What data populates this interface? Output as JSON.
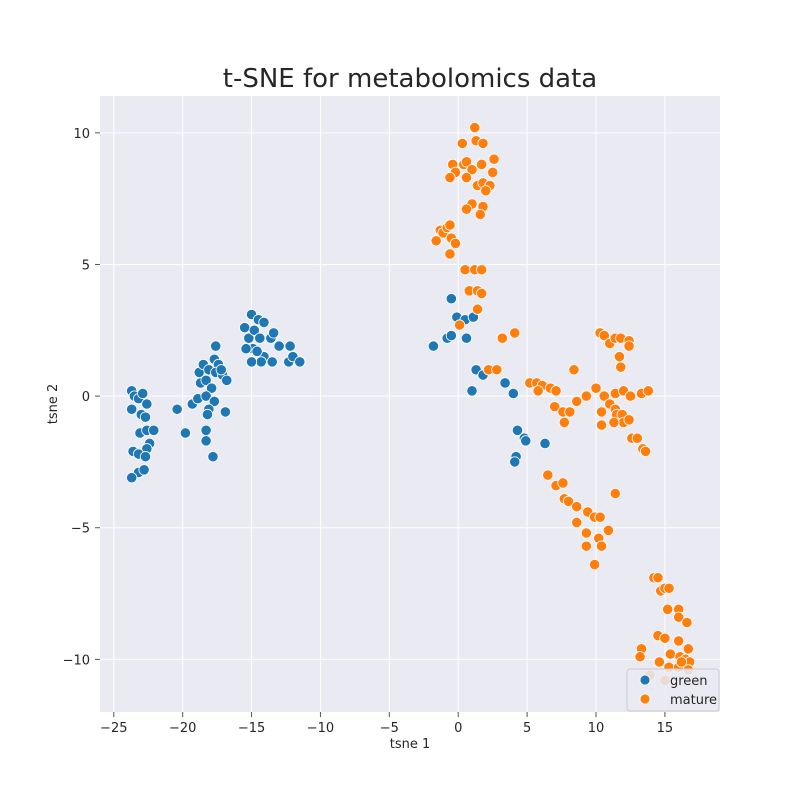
{
  "chart_data": {
    "type": "scatter",
    "title": "t-SNE for metabolomics data",
    "xlabel": "tsne 1",
    "ylabel": "tsne 2",
    "xlim": [
      -26,
      19
    ],
    "ylim": [
      -12,
      11.4
    ],
    "xticks": [
      -25,
      -20,
      -15,
      -10,
      -5,
      0,
      5,
      10,
      15
    ],
    "yticks": [
      -10,
      -5,
      0,
      5,
      10
    ],
    "grid": true,
    "legend_position": "bottom-right",
    "series": [
      {
        "name": "green",
        "color": "#1f77b4",
        "points": [
          [
            -23.7,
            0.2
          ],
          [
            -23.5,
            0.0
          ],
          [
            -23.2,
            -0.1
          ],
          [
            -22.9,
            0.1
          ],
          [
            -23.7,
            -0.5
          ],
          [
            -23.0,
            -0.7
          ],
          [
            -22.6,
            -0.3
          ],
          [
            -22.7,
            -0.8
          ],
          [
            -23.1,
            -1.4
          ],
          [
            -22.6,
            -1.3
          ],
          [
            -22.1,
            -1.3
          ],
          [
            -22.4,
            -1.8
          ],
          [
            -22.6,
            -2.0
          ],
          [
            -23.6,
            -2.1
          ],
          [
            -23.2,
            -2.2
          ],
          [
            -22.7,
            -2.3
          ],
          [
            -23.2,
            -2.9
          ],
          [
            -22.8,
            -2.8
          ],
          [
            -23.7,
            -3.1
          ],
          [
            -20.4,
            -0.5
          ],
          [
            -19.8,
            -1.4
          ],
          [
            -19.3,
            -0.3
          ],
          [
            -18.9,
            -0.1
          ],
          [
            -18.3,
            -1.3
          ],
          [
            -18.3,
            -1.7
          ],
          [
            -17.8,
            -2.3
          ],
          [
            -18.8,
            0.9
          ],
          [
            -18.5,
            1.2
          ],
          [
            -18.1,
            1.0
          ],
          [
            -17.7,
            1.4
          ],
          [
            -17.4,
            1.2
          ],
          [
            -17.6,
            1.9
          ],
          [
            -18.7,
            0.5
          ],
          [
            -18.3,
            0.6
          ],
          [
            -17.9,
            0.3
          ],
          [
            -17.6,
            0.9
          ],
          [
            -17.1,
            0.8
          ],
          [
            -16.8,
            0.6
          ],
          [
            -17.2,
            1.0
          ],
          [
            -18.3,
            0.0
          ],
          [
            -17.7,
            -0.2
          ],
          [
            -18.1,
            -0.5
          ],
          [
            -18.2,
            -0.7
          ],
          [
            -16.9,
            -0.6
          ],
          [
            -15.5,
            2.6
          ],
          [
            -15.0,
            3.1
          ],
          [
            -15.2,
            2.2
          ],
          [
            -14.8,
            2.5
          ],
          [
            -14.5,
            2.9
          ],
          [
            -14.1,
            2.8
          ],
          [
            -14.4,
            2.2
          ],
          [
            -14.1,
            1.5
          ],
          [
            -13.6,
            2.2
          ],
          [
            -13.4,
            2.4
          ],
          [
            -13.0,
            1.9
          ],
          [
            -13.5,
            1.3
          ],
          [
            -14.3,
            1.3
          ],
          [
            -14.9,
            1.8
          ],
          [
            -15.0,
            1.3
          ],
          [
            -15.4,
            1.8
          ],
          [
            -14.6,
            1.7
          ],
          [
            -12.2,
            1.9
          ],
          [
            -12.3,
            1.3
          ],
          [
            -12.0,
            1.5
          ],
          [
            -11.5,
            1.3
          ],
          [
            -0.5,
            3.7
          ],
          [
            -1.8,
            1.9
          ],
          [
            -0.8,
            2.2
          ],
          [
            -0.5,
            2.3
          ],
          [
            -0.1,
            3.0
          ],
          [
            0.5,
            2.9
          ],
          [
            1.1,
            3.0
          ],
          [
            0.6,
            2.2
          ],
          [
            1.3,
            1.0
          ],
          [
            1.8,
            0.8
          ],
          [
            1.0,
            0.2
          ],
          [
            3.4,
            0.5
          ],
          [
            4.0,
            0.1
          ],
          [
            4.3,
            -1.3
          ],
          [
            4.8,
            -1.6
          ],
          [
            4.9,
            -1.7
          ],
          [
            4.2,
            -2.3
          ],
          [
            4.1,
            -2.5
          ],
          [
            6.3,
            -1.8
          ]
        ]
      },
      {
        "name": "mature",
        "color": "#ff7f0e",
        "points": [
          [
            1.2,
            10.2
          ],
          [
            0.3,
            9.6
          ],
          [
            1.3,
            9.7
          ],
          [
            1.8,
            9.6
          ],
          [
            0.4,
            8.8
          ],
          [
            -0.4,
            8.8
          ],
          [
            0.6,
            8.9
          ],
          [
            1.0,
            8.6
          ],
          [
            1.7,
            8.8
          ],
          [
            2.6,
            9.0
          ],
          [
            -0.2,
            8.5
          ],
          [
            -0.6,
            8.3
          ],
          [
            0.6,
            8.3
          ],
          [
            2.5,
            8.5
          ],
          [
            1.4,
            8.0
          ],
          [
            1.8,
            8.1
          ],
          [
            2.3,
            8.0
          ],
          [
            2.0,
            7.8
          ],
          [
            1.0,
            7.3
          ],
          [
            0.6,
            7.1
          ],
          [
            1.8,
            7.2
          ],
          [
            1.6,
            6.9
          ],
          [
            -1.3,
            6.3
          ],
          [
            -1.1,
            6.2
          ],
          [
            -0.8,
            6.4
          ],
          [
            -0.6,
            6.5
          ],
          [
            -0.5,
            6.0
          ],
          [
            -0.2,
            5.8
          ],
          [
            -1.6,
            5.9
          ],
          [
            -0.6,
            5.4
          ],
          [
            0.5,
            4.8
          ],
          [
            1.2,
            4.8
          ],
          [
            1.7,
            4.8
          ],
          [
            0.8,
            4.0
          ],
          [
            1.4,
            4.0
          ],
          [
            1.7,
            3.9
          ],
          [
            1.4,
            3.3
          ],
          [
            0.1,
            2.7
          ],
          [
            3.2,
            2.2
          ],
          [
            4.1,
            2.4
          ],
          [
            2.2,
            1.0
          ],
          [
            2.8,
            1.0
          ],
          [
            5.2,
            0.5
          ],
          [
            5.7,
            0.5
          ],
          [
            6.1,
            0.4
          ],
          [
            6.7,
            0.3
          ],
          [
            7.1,
            0.2
          ],
          [
            5.8,
            0.2
          ],
          [
            7.0,
            -0.4
          ],
          [
            7.6,
            -0.6
          ],
          [
            7.7,
            -1.0
          ],
          [
            8.1,
            -0.6
          ],
          [
            8.4,
            1.0
          ],
          [
            8.6,
            -0.2
          ],
          [
            9.3,
            0.0
          ],
          [
            10.0,
            0.3
          ],
          [
            10.6,
            0.0
          ],
          [
            11.0,
            -0.3
          ],
          [
            11.4,
            0.1
          ],
          [
            12.0,
            0.2
          ],
          [
            12.5,
            0.0
          ],
          [
            13.3,
            0.1
          ],
          [
            13.8,
            0.2
          ],
          [
            10.4,
            -0.6
          ],
          [
            10.4,
            -1.1
          ],
          [
            11.4,
            -0.5
          ],
          [
            11.5,
            -0.7
          ],
          [
            11.9,
            -0.7
          ],
          [
            12.0,
            -1.0
          ],
          [
            12.4,
            -0.9
          ],
          [
            11.3,
            -1.0
          ],
          [
            12.6,
            -1.6
          ],
          [
            13.0,
            -1.6
          ],
          [
            13.4,
            -2.0
          ],
          [
            13.6,
            -2.1
          ],
          [
            10.3,
            2.4
          ],
          [
            10.6,
            2.3
          ],
          [
            11.0,
            2.0
          ],
          [
            11.4,
            2.2
          ],
          [
            11.8,
            2.2
          ],
          [
            12.4,
            2.1
          ],
          [
            12.4,
            1.9
          ],
          [
            11.7,
            1.5
          ],
          [
            11.8,
            1.1
          ],
          [
            6.5,
            -3.0
          ],
          [
            7.1,
            -3.4
          ],
          [
            7.6,
            -3.3
          ],
          [
            7.7,
            -3.9
          ],
          [
            8.0,
            -4.0
          ],
          [
            8.6,
            -4.2
          ],
          [
            9.4,
            -4.4
          ],
          [
            9.9,
            -4.6
          ],
          [
            10.3,
            -4.6
          ],
          [
            8.6,
            -4.8
          ],
          [
            9.3,
            -5.2
          ],
          [
            9.3,
            -5.7
          ],
          [
            10.2,
            -5.4
          ],
          [
            10.4,
            -5.7
          ],
          [
            10.9,
            -5.1
          ],
          [
            9.9,
            -6.4
          ],
          [
            11.4,
            -3.7
          ],
          [
            14.2,
            -6.9
          ],
          [
            14.5,
            -6.9
          ],
          [
            14.7,
            -7.4
          ],
          [
            15.0,
            -7.3
          ],
          [
            15.3,
            -7.3
          ],
          [
            15.2,
            -8.1
          ],
          [
            16.0,
            -8.1
          ],
          [
            16.0,
            -8.4
          ],
          [
            16.6,
            -8.6
          ],
          [
            14.5,
            -9.1
          ],
          [
            15.0,
            -9.2
          ],
          [
            16.0,
            -9.3
          ],
          [
            15.4,
            -9.8
          ],
          [
            13.3,
            -9.6
          ],
          [
            13.2,
            -9.9
          ],
          [
            16.1,
            -9.9
          ],
          [
            16.7,
            -9.6
          ],
          [
            16.5,
            -10.0
          ],
          [
            16.8,
            -10.1
          ],
          [
            14.6,
            -10.1
          ],
          [
            15.3,
            -10.3
          ],
          [
            16.0,
            -10.3
          ],
          [
            16.2,
            -10.1
          ],
          [
            13.9,
            -10.6
          ],
          [
            16.7,
            -10.4
          ],
          [
            15.0,
            -10.8
          ]
        ]
      }
    ]
  }
}
